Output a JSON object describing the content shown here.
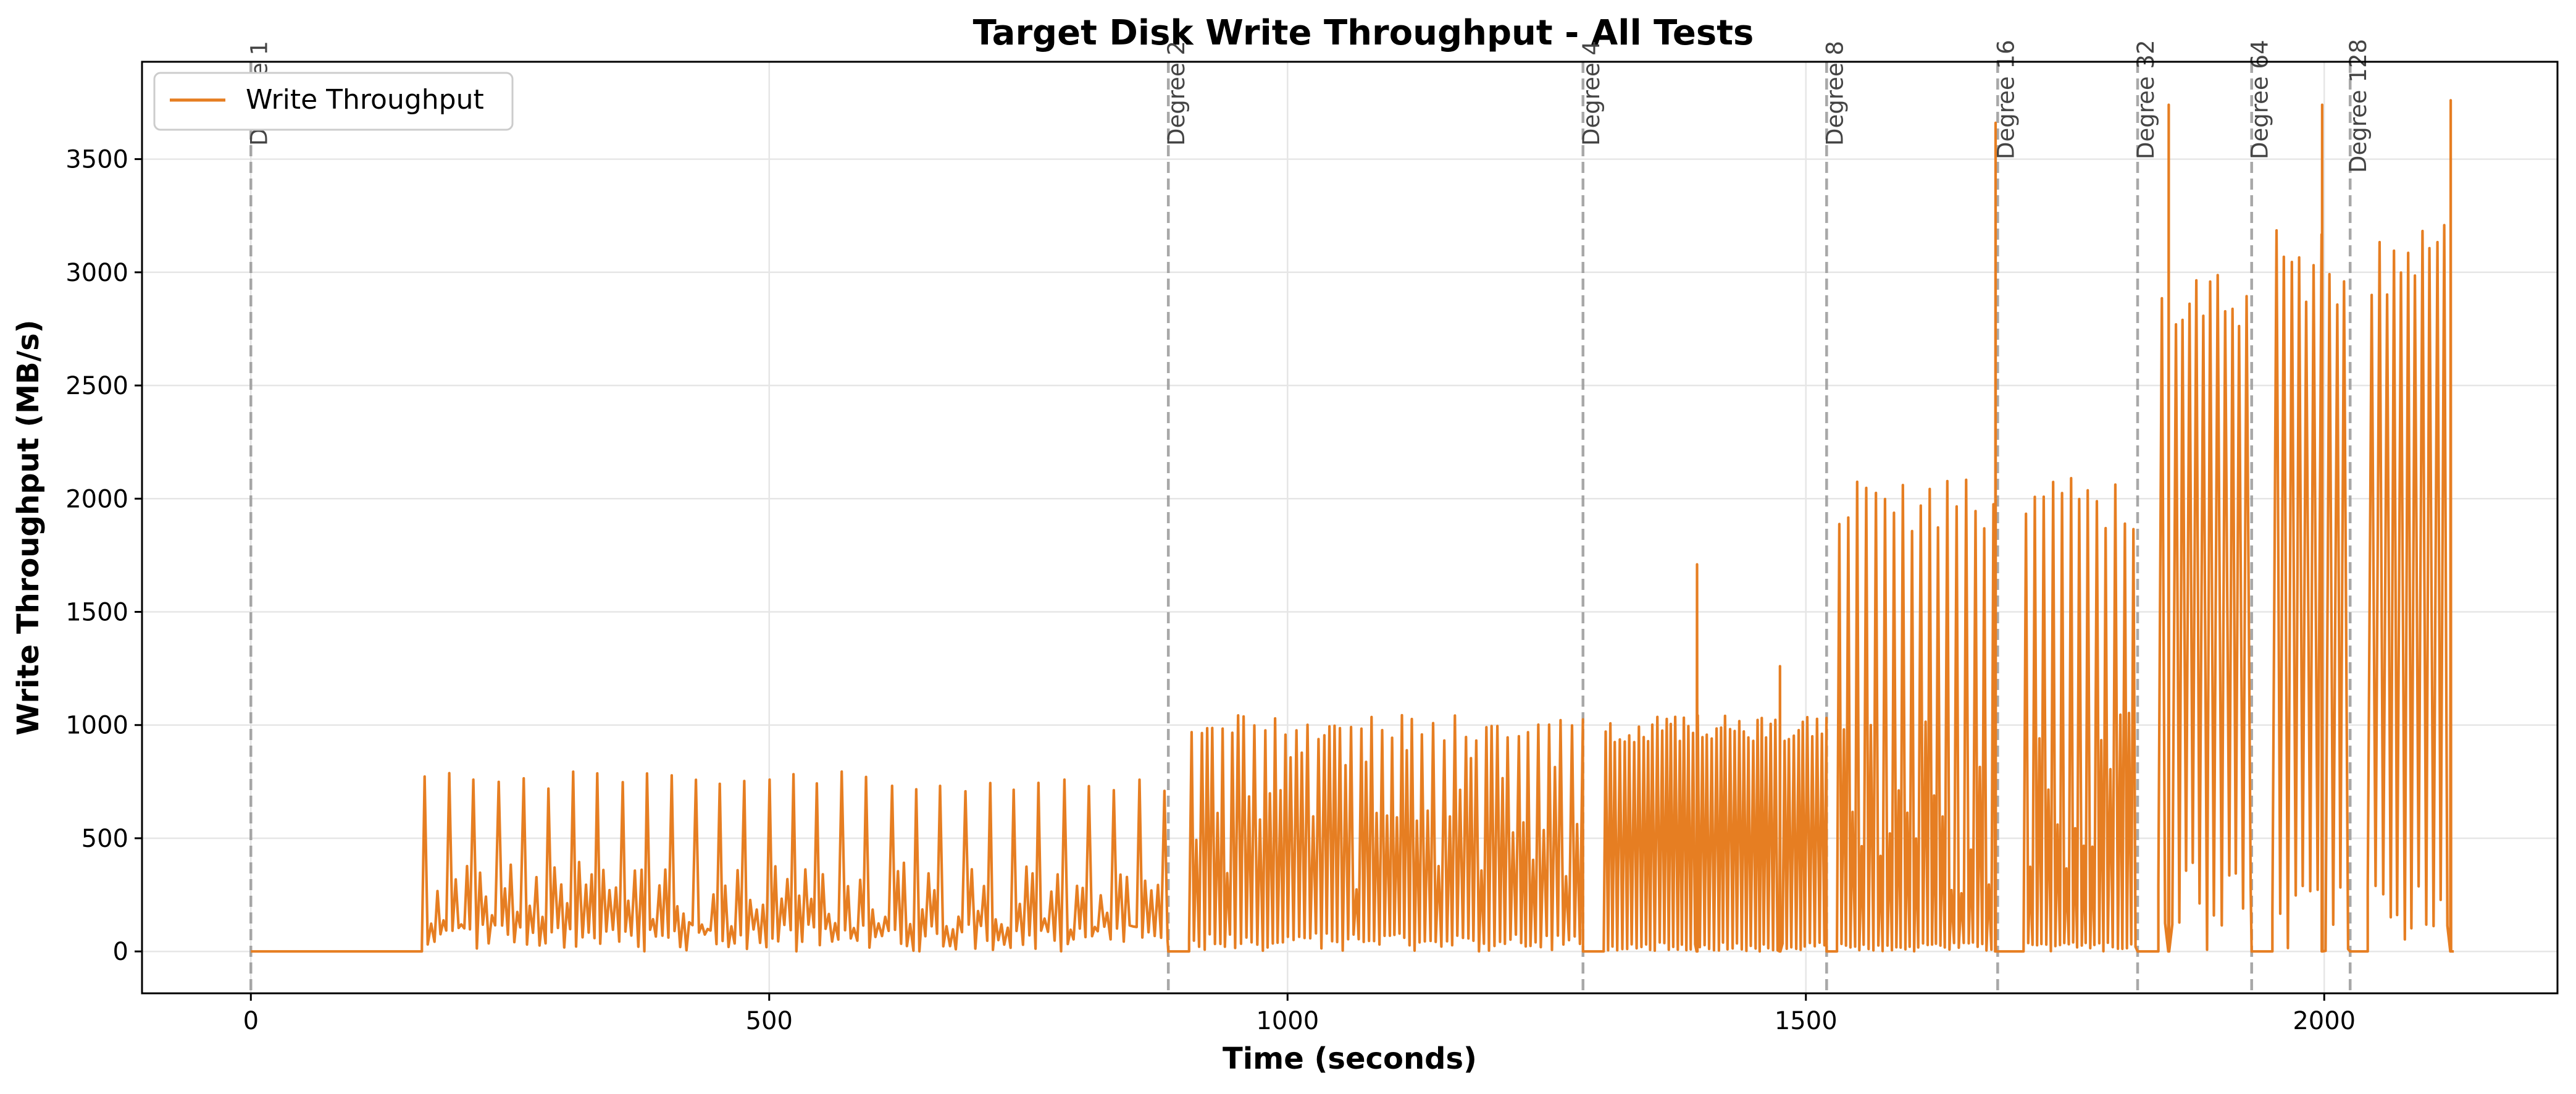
{
  "chart_data": {
    "type": "line",
    "title": "Target Disk Write Throughput - All Tests",
    "xlabel": "Time (seconds)",
    "ylabel": "Write Throughput (MB/s)",
    "xlim": [
      -105,
      2225
    ],
    "ylim": [
      -185,
      3930
    ],
    "x_ticks": [
      0,
      500,
      1000,
      1500,
      2000
    ],
    "y_ticks": [
      0,
      500,
      1000,
      1500,
      2000,
      2500,
      3000,
      3500
    ],
    "grid": true,
    "legend_position": "upper-left",
    "series": [
      {
        "name": "Write Throughput",
        "color": "#e67e22",
        "segments": [
          {
            "x0": 0,
            "x1": 165,
            "baseline": 0,
            "peak": 0,
            "peak_every": 1,
            "burst_high": 0,
            "low_max": 0,
            "step": 5
          },
          {
            "x0": 165,
            "x1": 885,
            "baseline": 0,
            "peak": 780,
            "peak_every": 4,
            "burst_high": 380,
            "low_max": 120,
            "step": 3
          },
          {
            "x0": 885,
            "x1": 905,
            "baseline": 0,
            "peak": 0,
            "peak_every": 1,
            "burst_high": 0,
            "low_max": 0,
            "step": 5
          },
          {
            "x0": 905,
            "x1": 1285,
            "baseline": 0,
            "peak": 1025,
            "peak_every": 2,
            "burst_high": 1025,
            "low_max": 80,
            "step": 2.5
          },
          {
            "x0": 1285,
            "x1": 1305,
            "baseline": 0,
            "peak": 0,
            "peak_every": 1,
            "burst_high": 0,
            "low_max": 0,
            "step": 5
          },
          {
            "x0": 1305,
            "x1": 1520,
            "baseline": 0,
            "peak": 1025,
            "peak_every": 1,
            "burst_high": 1025,
            "low_max": 40,
            "step": 2.2
          },
          {
            "x0": 1520,
            "x1": 1530,
            "baseline": 0,
            "peak": 0,
            "peak_every": 1,
            "burst_high": 0,
            "low_max": 0,
            "step": 5
          },
          {
            "x0": 1530,
            "x1": 1685,
            "baseline": 0,
            "peak": 2050,
            "peak_every": 2,
            "burst_high": 1025,
            "low_max": 40,
            "step": 2.2
          },
          {
            "x0": 1685,
            "x1": 1710,
            "baseline": 0,
            "peak": 0,
            "peak_every": 1,
            "burst_high": 0,
            "low_max": 0,
            "step": 5
          },
          {
            "x0": 1710,
            "x1": 1820,
            "baseline": 0,
            "peak": 2050,
            "peak_every": 2,
            "burst_high": 1025,
            "low_max": 40,
            "step": 2.2
          },
          {
            "x0": 1820,
            "x1": 1840,
            "baseline": 0,
            "peak": 0,
            "peak_every": 1,
            "burst_high": 0,
            "low_max": 0,
            "step": 5
          },
          {
            "x0": 1840,
            "x1": 1930,
            "baseline": 0,
            "peak": 3000,
            "peak_every": 1,
            "burst_high": 2800,
            "low_max": 400,
            "step": 3.5
          },
          {
            "x0": 1930,
            "x1": 1950,
            "baseline": 0,
            "peak": 0,
            "peak_every": 1,
            "burst_high": 0,
            "low_max": 0,
            "step": 5
          },
          {
            "x0": 1950,
            "x1": 2025,
            "baseline": 0,
            "peak": 3150,
            "peak_every": 1,
            "burst_high": 3000,
            "low_max": 300,
            "step": 3.5
          },
          {
            "x0": 2025,
            "x1": 2042,
            "baseline": 0,
            "peak": 0,
            "peak_every": 1,
            "burst_high": 0,
            "low_max": 0,
            "step": 5
          },
          {
            "x0": 2042,
            "x1": 2125,
            "baseline": 0,
            "peak": 3200,
            "peak_every": 1,
            "burst_high": 3000,
            "low_max": 300,
            "step": 3.5
          }
        ],
        "spikes": [
          {
            "x": 1395,
            "y": 1710
          },
          {
            "x": 1475,
            "y": 1260
          },
          {
            "x": 1683,
            "y": 3660
          },
          {
            "x": 1850,
            "y": 3740
          },
          {
            "x": 1998,
            "y": 3740
          },
          {
            "x": 2122,
            "y": 3760
          }
        ]
      }
    ],
    "vertical_markers": [
      {
        "x": 0,
        "label": "Degree 1"
      },
      {
        "x": 885,
        "label": "Degree 2"
      },
      {
        "x": 1285,
        "label": "Degree 4"
      },
      {
        "x": 1520,
        "label": "Degree 8"
      },
      {
        "x": 1685,
        "label": "Degree 16"
      },
      {
        "x": 1820,
        "label": "Degree 32"
      },
      {
        "x": 1930,
        "label": "Degree 64"
      },
      {
        "x": 2025,
        "label": "Degree 128"
      }
    ]
  }
}
